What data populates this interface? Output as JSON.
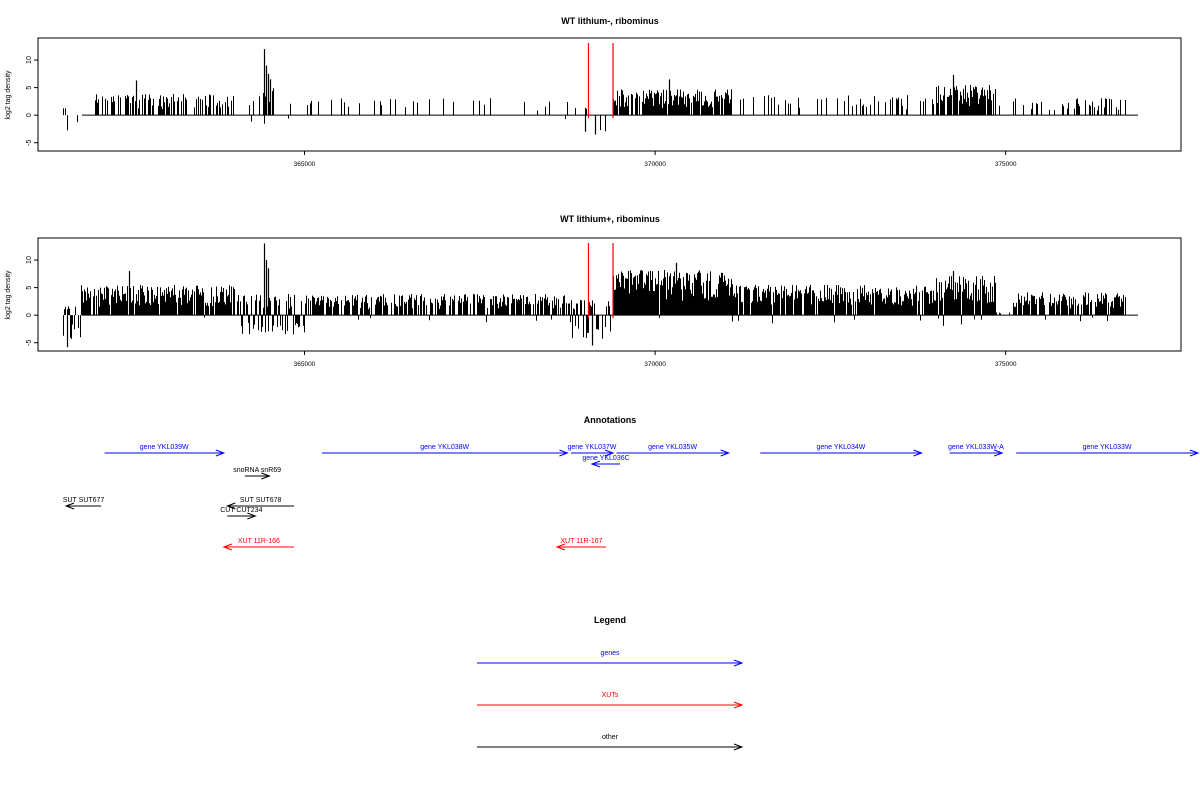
{
  "chart_data": [
    {
      "type": "bar",
      "title": "WT lithium-, ribominus",
      "xlabel": "",
      "ylabel": "log2 tag density",
      "xlim": [
        361200,
        377500
      ],
      "ylim": [
        -6.5,
        14
      ],
      "x_ticks": [
        "365000",
        "370000",
        "375000"
      ],
      "y_ticks": [
        "10",
        "5",
        "0",
        "-5"
      ],
      "markers_x": [
        369050,
        369400
      ],
      "marker_color": "#ff0000",
      "bar_color": "#000000",
      "segments": [
        {
          "x0": 361550,
          "x1": 361750,
          "amp": 1.5,
          "neg": -3.5,
          "density": 0.35,
          "pneg": 0.5
        },
        {
          "x0": 362000,
          "x1": 364000,
          "amp": 3.5,
          "neg": 0,
          "density": 0.45
        },
        {
          "x0": 364200,
          "x1": 364550,
          "amp": 4.5,
          "neg": -2,
          "density": 0.5,
          "pneg": 0.05
        },
        {
          "x0": 364700,
          "x1": 368800,
          "amp": 2.8,
          "neg": -1,
          "density": 0.12,
          "pneg": 0.03
        },
        {
          "x0": 368800,
          "x1": 369300,
          "amp": 1.5,
          "neg": -3.5,
          "density": 0.25,
          "pneg": 0.4
        },
        {
          "x0": 369400,
          "x1": 371100,
          "amp": 4.3,
          "neg": 0,
          "density": 0.9
        },
        {
          "x0": 371100,
          "x1": 374000,
          "amp": 3.3,
          "neg": 0,
          "density": 0.22
        },
        {
          "x0": 374000,
          "x1": 374850,
          "amp": 5,
          "neg": 0,
          "density": 0.85
        },
        {
          "x0": 374850,
          "x1": 376700,
          "amp": 2.8,
          "neg": 0,
          "density": 0.25
        }
      ],
      "peaks": [
        {
          "x": 364420,
          "y": 12
        },
        {
          "x": 364450,
          "y": 9
        },
        {
          "x": 364480,
          "y": 7.5
        },
        {
          "x": 364510,
          "y": 6.5
        },
        {
          "x": 374250,
          "y": 7.3
        },
        {
          "x": 370200,
          "y": 6.5
        },
        {
          "x": 362600,
          "y": 6.3
        },
        {
          "x": 369000,
          "y": -3
        },
        {
          "x": 369150,
          "y": -3.5
        }
      ]
    },
    {
      "type": "bar",
      "title": "WT lithium+, ribominus",
      "xlabel": "",
      "ylabel": "log2 tag density",
      "xlim": [
        361200,
        377500
      ],
      "ylim": [
        -6.5,
        14
      ],
      "x_ticks": [
        "365000",
        "370000",
        "375000"
      ],
      "y_ticks": [
        "10",
        "5",
        "0",
        "-5"
      ],
      "markers_x": [
        369050,
        369400
      ],
      "marker_color": "#ff0000",
      "bar_color": "#000000",
      "segments": [
        {
          "x0": 361550,
          "x1": 361800,
          "amp": 1.5,
          "neg": -4.5,
          "density": 0.6,
          "pneg": 0.6
        },
        {
          "x0": 361800,
          "x1": 364000,
          "amp": 5,
          "neg": -0.5,
          "density": 0.9,
          "pneg": 0.02
        },
        {
          "x0": 364000,
          "x1": 365000,
          "amp": 3.5,
          "neg": -3.5,
          "density": 0.85,
          "pneg": 0.45
        },
        {
          "x0": 365000,
          "x1": 368800,
          "amp": 3.5,
          "neg": -1.5,
          "density": 0.8,
          "pneg": 0.05
        },
        {
          "x0": 368800,
          "x1": 369350,
          "amp": 2.5,
          "neg": -4.5,
          "density": 0.7,
          "pneg": 0.5
        },
        {
          "x0": 369400,
          "x1": 371100,
          "amp": 7.5,
          "neg": -1,
          "density": 1,
          "pneg": 0.02
        },
        {
          "x0": 371100,
          "x1": 374000,
          "amp": 5,
          "neg": -1.5,
          "density": 0.95,
          "pneg": 0.05
        },
        {
          "x0": 374000,
          "x1": 374850,
          "amp": 6.5,
          "neg": -2,
          "density": 1,
          "pneg": 0.05
        },
        {
          "x0": 374850,
          "x1": 375100,
          "amp": 0.5,
          "neg": 0,
          "density": 0.1
        },
        {
          "x0": 375100,
          "x1": 376700,
          "amp": 3.8,
          "neg": -1.5,
          "density": 0.85,
          "pneg": 0.06
        }
      ],
      "peaks": [
        {
          "x": 364420,
          "y": 13
        },
        {
          "x": 364450,
          "y": 10
        },
        {
          "x": 364480,
          "y": 8.5
        },
        {
          "x": 374250,
          "y": 8
        },
        {
          "x": 370300,
          "y": 9.5
        },
        {
          "x": 362500,
          "y": 8
        },
        {
          "x": 361620,
          "y": -5.8
        },
        {
          "x": 369100,
          "y": -5.5
        }
      ]
    }
  ],
  "annotations": {
    "title": "Annotations",
    "xlim": [
      361200,
      377500
    ],
    "features": [
      {
        "label": "gene YKL039W",
        "x0": 362150,
        "x1": 363850,
        "row": 0,
        "dir": 1,
        "color": "#0000ff"
      },
      {
        "label": "gene YKL038W",
        "x0": 365250,
        "x1": 368750,
        "row": 0,
        "dir": 1,
        "color": "#0000ff"
      },
      {
        "label": "gene YKL037W",
        "x0": 368800,
        "x1": 369400,
        "row": 0,
        "dir": 1,
        "color": "#0000ff"
      },
      {
        "label": "gene YKL035W",
        "x0": 369450,
        "x1": 371050,
        "row": 0,
        "dir": 1,
        "color": "#0000ff"
      },
      {
        "label": "gene YKL034W",
        "x0": 371500,
        "x1": 373800,
        "row": 0,
        "dir": 1,
        "color": "#0000ff"
      },
      {
        "label": "gene YKL033W-A",
        "x0": 374200,
        "x1": 374950,
        "row": 0,
        "dir": 1,
        "color": "#0000ff"
      },
      {
        "label": "gene YKL033W",
        "x0": 375150,
        "x1": 378000,
        "row": 0,
        "dir": 1,
        "color": "#0000ff"
      },
      {
        "label": "gene YKL036C",
        "x0": 369100,
        "x1": 369500,
        "row": 1,
        "dir": -1,
        "color": "#0000ff"
      },
      {
        "label": "snoRNA snR69",
        "x0": 364150,
        "x1": 364500,
        "row": 2,
        "dir": 1,
        "color": "#000000"
      },
      {
        "label": "SUT SUT677",
        "x0": 361600,
        "x1": 362100,
        "row": 3,
        "dir": -1,
        "color": "#000000"
      },
      {
        "label": "SUT SUT678",
        "x0": 363900,
        "x1": 364850,
        "row": 3,
        "dir": -1,
        "color": "#000000"
      },
      {
        "label": "CUT CUT234",
        "x0": 363900,
        "x1": 364300,
        "row": 4,
        "dir": 1,
        "color": "#000000"
      },
      {
        "label": "XUT 11R-166",
        "x0": 363850,
        "x1": 364850,
        "row": 5,
        "dir": -1,
        "color": "#ff0000"
      },
      {
        "label": "XUT 11R-167",
        "x0": 368600,
        "x1": 369300,
        "row": 5,
        "dir": -1,
        "color": "#ff0000"
      }
    ]
  },
  "legend": {
    "title": "Legend",
    "entries": [
      {
        "label": "genes",
        "color": "#0000ff"
      },
      {
        "label": "XUTs",
        "color": "#ff0000"
      },
      {
        "label": "other",
        "color": "#000000"
      }
    ]
  }
}
